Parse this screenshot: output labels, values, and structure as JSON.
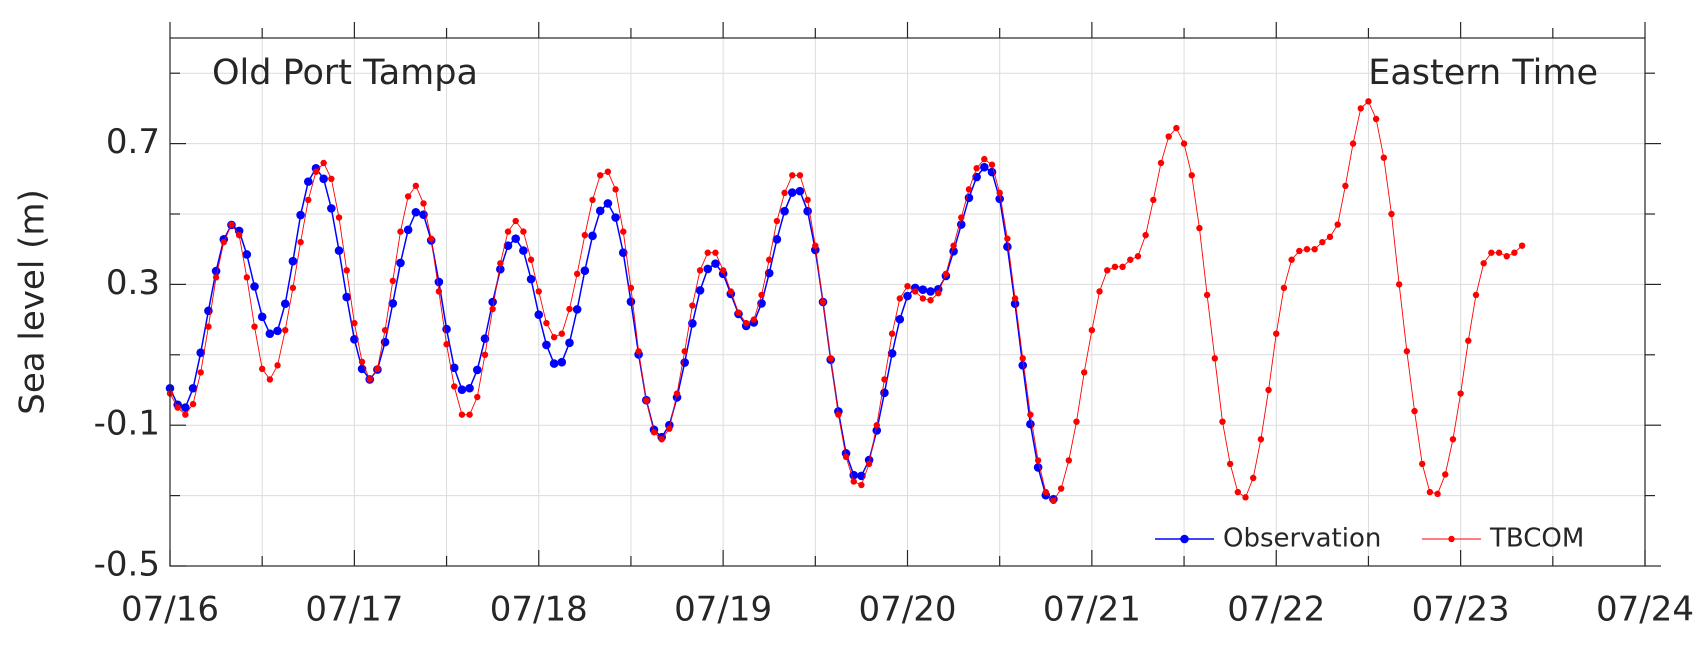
{
  "chart_data": {
    "type": "line",
    "annotations": [
      "Old Port Tampa",
      "Eastern Time"
    ],
    "ylabel": "Sea level (m)",
    "xlim": [
      0,
      192
    ],
    "xticks": [
      {
        "value": 0,
        "label": "07/16"
      },
      {
        "value": 24,
        "label": "07/17"
      },
      {
        "value": 48,
        "label": "07/18"
      },
      {
        "value": 72,
        "label": "07/19"
      },
      {
        "value": 96,
        "label": "07/20"
      },
      {
        "value": 120,
        "label": "07/21"
      },
      {
        "value": 144,
        "label": "07/22"
      },
      {
        "value": 168,
        "label": "07/23"
      },
      {
        "value": 192,
        "label": "07/24"
      }
    ],
    "minor_xticks": [
      12,
      36,
      60,
      84,
      108,
      132,
      156,
      180
    ],
    "ylim": [
      -0.5,
      1.0
    ],
    "yticks": [
      -0.5,
      -0.1,
      0.3,
      0.7
    ],
    "minor_yticks": [
      -0.3,
      0.1,
      0.5,
      0.9
    ],
    "grid": true,
    "legend": "lower right",
    "x": [
      0,
      1,
      2,
      3,
      4,
      5,
      6,
      7,
      8,
      9,
      10,
      11,
      12,
      13,
      14,
      15,
      16,
      17,
      18,
      19,
      20,
      21,
      22,
      23,
      24,
      25,
      26,
      27,
      28,
      29,
      30,
      31,
      32,
      33,
      34,
      35,
      36,
      37,
      38,
      39,
      40,
      41,
      42,
      43,
      44,
      45,
      46,
      47,
      48,
      49,
      50,
      51,
      52,
      53,
      54,
      55,
      56,
      57,
      58,
      59,
      60,
      61,
      62,
      63,
      64,
      65,
      66,
      67,
      68,
      69,
      70,
      71,
      72,
      73,
      74,
      75,
      76,
      77,
      78,
      79,
      80,
      81,
      82,
      83,
      84,
      85,
      86,
      87,
      88,
      89,
      90,
      91,
      92,
      93,
      94,
      95,
      96,
      97,
      98,
      99,
      100,
      101,
      102,
      103,
      104,
      105,
      106,
      107,
      108,
      109,
      110,
      111,
      112,
      113,
      114,
      115,
      116,
      117,
      118,
      119,
      120,
      121,
      122,
      123,
      124,
      125,
      126,
      127,
      128,
      129,
      130,
      131,
      132,
      133,
      134,
      135,
      136,
      137,
      138,
      139,
      140,
      141,
      142,
      143,
      144,
      145,
      146,
      147,
      148,
      149,
      150,
      151,
      152,
      153,
      154,
      155,
      156,
      157,
      158,
      159,
      160,
      161,
      162,
      163,
      164,
      165,
      166,
      167,
      168,
      169,
      170,
      171,
      172,
      173,
      174,
      175,
      176
    ],
    "series": [
      {
        "name": "Observation",
        "color": "#0000ff",
        "values": [
          0.005,
          -0.042,
          -0.05,
          0.005,
          0.106,
          0.225,
          0.338,
          0.428,
          0.469,
          0.452,
          0.385,
          0.294,
          0.208,
          0.16,
          0.168,
          0.245,
          0.366,
          0.497,
          0.592,
          0.63,
          0.6,
          0.516,
          0.396,
          0.264,
          0.144,
          0.06,
          0.03,
          0.058,
          0.136,
          0.246,
          0.361,
          0.455,
          0.505,
          0.498,
          0.425,
          0.307,
          0.173,
          0.063,
          0.001,
          0.005,
          0.057,
          0.146,
          0.25,
          0.343,
          0.41,
          0.43,
          0.396,
          0.315,
          0.214,
          0.128,
          0.075,
          0.079,
          0.134,
          0.229,
          0.339,
          0.438,
          0.509,
          0.53,
          0.49,
          0.39,
          0.251,
          0.101,
          -0.029,
          -0.113,
          -0.134,
          -0.1,
          -0.021,
          0.078,
          0.189,
          0.283,
          0.344,
          0.359,
          0.33,
          0.273,
          0.216,
          0.182,
          0.192,
          0.246,
          0.332,
          0.428,
          0.508,
          0.561,
          0.565,
          0.508,
          0.398,
          0.25,
          0.086,
          -0.061,
          -0.18,
          -0.242,
          -0.244,
          -0.199,
          -0.115,
          -0.008,
          0.104,
          0.201,
          0.267,
          0.29,
          0.285,
          0.28,
          0.286,
          0.324,
          0.394,
          0.47,
          0.546,
          0.605,
          0.633,
          0.619,
          0.543,
          0.407,
          0.245,
          0.07,
          -0.097,
          -0.22,
          -0.299,
          -0.31,
          null,
          null,
          null,
          null,
          null,
          null,
          null,
          null,
          null,
          null,
          null,
          null,
          null,
          null,
          null,
          null,
          null,
          null,
          null,
          null,
          null,
          null,
          null,
          null,
          null,
          null,
          null,
          null,
          null,
          null,
          null,
          null,
          null,
          null,
          null,
          null,
          null,
          null,
          null,
          null,
          null,
          null,
          null,
          null,
          null,
          null,
          null,
          null,
          null,
          null,
          null,
          null,
          null,
          null,
          null,
          null,
          null,
          null,
          null,
          null,
          null
        ]
      },
      {
        "name": "TBCOM",
        "color": "#ff0000",
        "values": [
          -0.01,
          -0.05,
          -0.07,
          -0.04,
          0.05,
          0.18,
          0.32,
          0.42,
          0.47,
          0.44,
          0.32,
          0.18,
          0.06,
          0.03,
          0.07,
          0.17,
          0.29,
          0.42,
          0.54,
          0.62,
          0.645,
          0.6,
          0.49,
          0.34,
          0.19,
          0.08,
          0.03,
          0.06,
          0.17,
          0.31,
          0.45,
          0.55,
          0.58,
          0.53,
          0.43,
          0.28,
          0.13,
          0.01,
          -0.07,
          -0.07,
          -0.02,
          0.1,
          0.23,
          0.36,
          0.45,
          0.48,
          0.45,
          0.37,
          0.28,
          0.19,
          0.15,
          0.16,
          0.23,
          0.33,
          0.44,
          0.54,
          0.61,
          0.62,
          0.57,
          0.45,
          0.29,
          0.11,
          -0.03,
          -0.12,
          -0.14,
          -0.11,
          -0.01,
          0.11,
          0.24,
          0.34,
          0.39,
          0.39,
          0.34,
          0.28,
          0.22,
          0.19,
          0.2,
          0.27,
          0.37,
          0.48,
          0.56,
          0.61,
          0.61,
          0.54,
          0.41,
          0.25,
          0.09,
          -0.07,
          -0.19,
          -0.26,
          -0.27,
          -0.21,
          -0.1,
          0.03,
          0.16,
          0.26,
          0.295,
          0.28,
          0.26,
          0.255,
          0.275,
          0.33,
          0.41,
          0.49,
          0.57,
          0.63,
          0.656,
          0.64,
          0.56,
          0.43,
          0.26,
          0.09,
          -0.07,
          -0.2,
          -0.29,
          -0.315,
          -0.28,
          -0.2,
          -0.09,
          0.05,
          0.17,
          0.28,
          0.34,
          0.35,
          0.35,
          0.37,
          0.38,
          0.44,
          0.54,
          0.645,
          0.72,
          0.744,
          0.7,
          0.61,
          0.46,
          0.27,
          0.09,
          -0.09,
          -0.21,
          -0.29,
          -0.305,
          -0.25,
          -0.14,
          0.0,
          0.16,
          0.29,
          0.37,
          0.395,
          0.4,
          0.4,
          0.42,
          0.435,
          0.47,
          0.58,
          0.7,
          0.8,
          0.82,
          0.77,
          0.66,
          0.5,
          0.3,
          0.11,
          -0.06,
          -0.21,
          -0.29,
          -0.295,
          -0.24,
          -0.14,
          -0.01,
          0.14,
          0.27,
          0.36,
          0.39,
          0.39,
          0.38,
          0.39,
          0.41
        ]
      }
    ]
  }
}
